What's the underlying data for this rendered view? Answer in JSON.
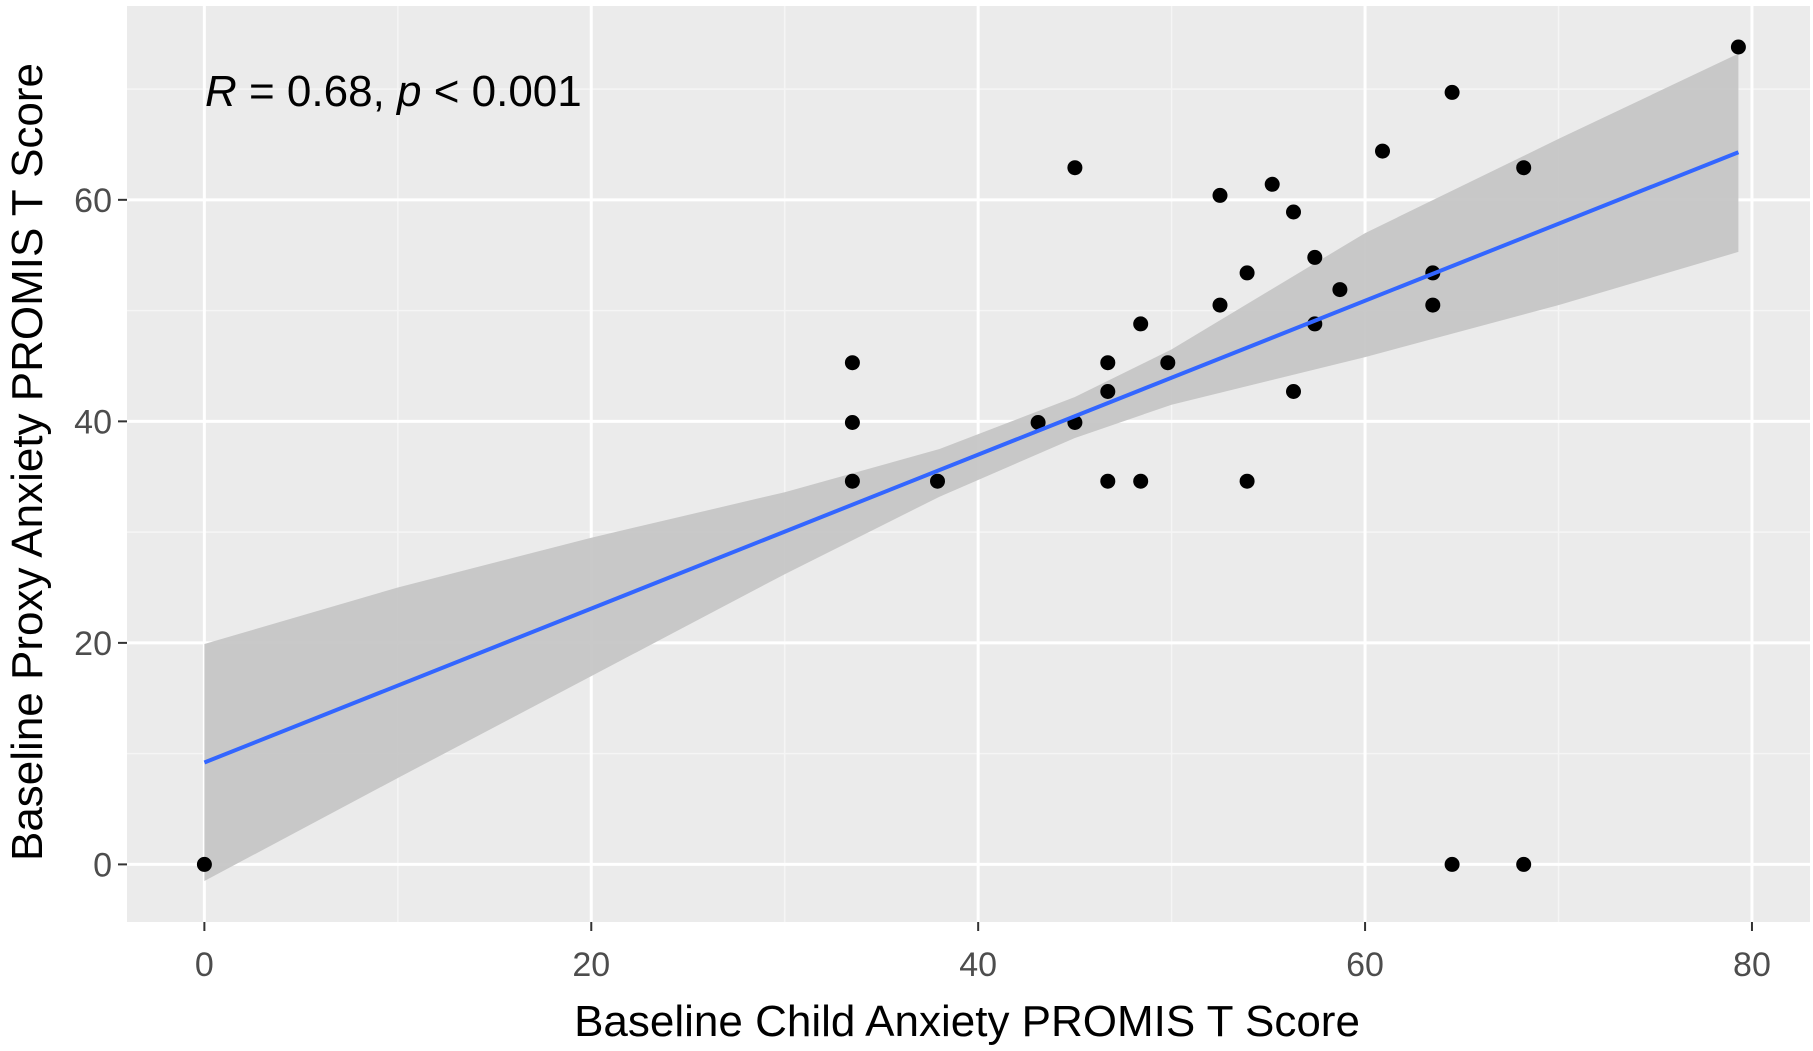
{
  "chart_data": {
    "type": "scatter",
    "title": "",
    "xlabel": "Baseline Child Anxiety PROMIS T Score",
    "ylabel": "Baseline Proxy Anxiety PROMIS T Score",
    "xlim": [
      -4,
      83
    ],
    "ylim": [
      -5.2,
      77.5
    ],
    "x_ticks": [
      0,
      20,
      40,
      60,
      80
    ],
    "x_tick_labels": [
      "0",
      "20",
      "40",
      "60",
      "80"
    ],
    "y_ticks": [
      0,
      20,
      40,
      60
    ],
    "y_tick_labels": [
      "0",
      "20",
      "40",
      "60"
    ],
    "x_minor_ticks": [
      10,
      30,
      50,
      70
    ],
    "y_minor_ticks": [
      10,
      30,
      50,
      70
    ],
    "grid": true,
    "annotation": {
      "R_symbol": "R",
      "R_text": " = 0.68, ",
      "p_symbol": "p",
      "p_text": " < 0.001"
    },
    "points": [
      {
        "x": 0,
        "y": 0
      },
      {
        "x": 33.5,
        "y": 45.3
      },
      {
        "x": 33.5,
        "y": 39.9
      },
      {
        "x": 33.5,
        "y": 34.6
      },
      {
        "x": 37.9,
        "y": 34.6
      },
      {
        "x": 43.1,
        "y": 39.9
      },
      {
        "x": 45.0,
        "y": 39.9
      },
      {
        "x": 45.0,
        "y": 62.9
      },
      {
        "x": 46.7,
        "y": 45.3
      },
      {
        "x": 46.7,
        "y": 42.7
      },
      {
        "x": 46.7,
        "y": 34.6
      },
      {
        "x": 48.4,
        "y": 48.8
      },
      {
        "x": 48.4,
        "y": 34.6
      },
      {
        "x": 49.8,
        "y": 45.3
      },
      {
        "x": 52.5,
        "y": 60.4
      },
      {
        "x": 52.5,
        "y": 50.5
      },
      {
        "x": 53.9,
        "y": 53.4
      },
      {
        "x": 53.9,
        "y": 34.6
      },
      {
        "x": 55.2,
        "y": 61.4
      },
      {
        "x": 56.3,
        "y": 58.9
      },
      {
        "x": 56.3,
        "y": 42.7
      },
      {
        "x": 57.4,
        "y": 54.8
      },
      {
        "x": 57.4,
        "y": 48.8
      },
      {
        "x": 58.7,
        "y": 51.9
      },
      {
        "x": 60.9,
        "y": 64.4
      },
      {
        "x": 63.5,
        "y": 53.4
      },
      {
        "x": 63.5,
        "y": 50.5
      },
      {
        "x": 64.5,
        "y": 69.7
      },
      {
        "x": 64.5,
        "y": 0
      },
      {
        "x": 68.2,
        "y": 62.9
      },
      {
        "x": 68.2,
        "y": 0
      },
      {
        "x": 79.3,
        "y": 73.8
      }
    ],
    "fit_line": {
      "x0": 0,
      "y0": 9.2,
      "x1": 79.3,
      "y1": 64.3
    },
    "confidence_band": {
      "x": [
        0,
        10,
        20,
        30,
        38,
        45,
        50,
        60,
        70,
        79.3
      ],
      "lower": [
        -1.5,
        7.8,
        17.0,
        26.2,
        33.2,
        38.5,
        41.5,
        45.8,
        50.5,
        55.3
      ],
      "upper": [
        19.9,
        25.0,
        29.5,
        33.6,
        37.5,
        42.2,
        46.5,
        57.0,
        65.5,
        73.2
      ]
    },
    "colors": {
      "panel_background": "#ebebeb",
      "grid_major": "#ffffff",
      "grid_minor": "#f5f5f5",
      "point": "#000000",
      "fit_line": "#3366ff",
      "confidence_band": "#c6c6c6",
      "tick_label": "#4d4d4d",
      "axis_title": "#000000"
    }
  }
}
